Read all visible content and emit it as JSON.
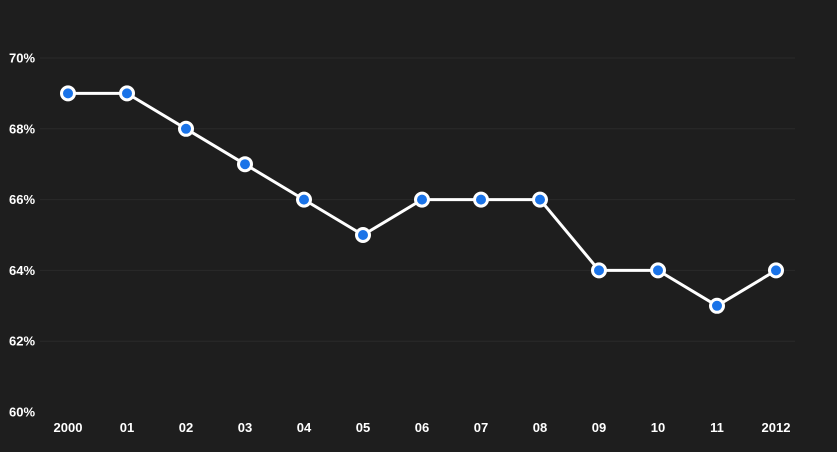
{
  "chart_data": {
    "type": "line",
    "title": "",
    "xlabel": "",
    "ylabel": "",
    "categories": [
      "2000",
      "01",
      "02",
      "03",
      "04",
      "05",
      "06",
      "07",
      "08",
      "09",
      "10",
      "11",
      "2012"
    ],
    "series": [
      {
        "values": [
          69,
          69,
          68,
          67,
          66,
          65,
          66,
          66,
          66,
          64,
          64,
          63,
          64
        ]
      }
    ],
    "ylim": [
      60,
      70
    ],
    "yticks": [
      60,
      62,
      64,
      66,
      68,
      70
    ],
    "ytick_labels": [
      "60%",
      "62%",
      "64%",
      "66%",
      "68%",
      "70%"
    ],
    "grid": true,
    "legend": "none",
    "colors": {
      "background": "#1e1e1e",
      "line": "#ffffff",
      "marker_fill": "#1a73e8",
      "marker_stroke": "#ffffff",
      "grid": "#2a2a2a",
      "text": "#ffffff"
    }
  }
}
